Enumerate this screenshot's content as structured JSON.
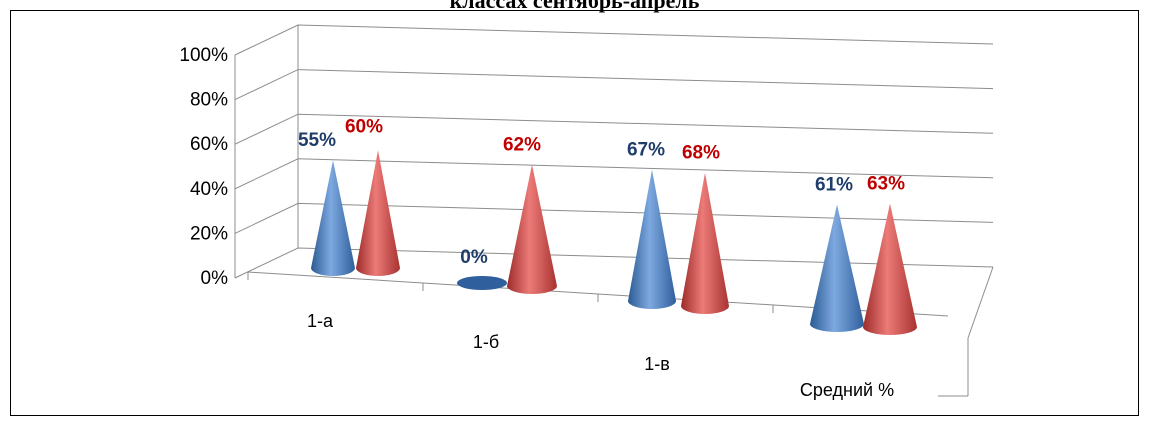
{
  "chart_data": {
    "type": "bar",
    "shape": "3d-cone",
    "title": "классах сентябрь-апрель",
    "categories": [
      "1-а",
      "1-б",
      "1-в",
      "Средний %"
    ],
    "series": [
      {
        "color": "#4f81bd",
        "label_color": "#1f3d6b",
        "values": [
          55,
          0,
          67,
          61
        ],
        "labels": [
          "55%",
          "0%",
          "67%",
          "61%"
        ]
      },
      {
        "color": "#c0504d",
        "label_color": "#c00000",
        "values": [
          60,
          62,
          68,
          63
        ],
        "labels": [
          "60%",
          "62%",
          "68%",
          "63%"
        ]
      }
    ],
    "yticks": [
      "0%",
      "20%",
      "40%",
      "60%",
      "80%",
      "100%"
    ],
    "ylim": [
      0,
      100
    ],
    "grid": true,
    "legend": "none"
  }
}
